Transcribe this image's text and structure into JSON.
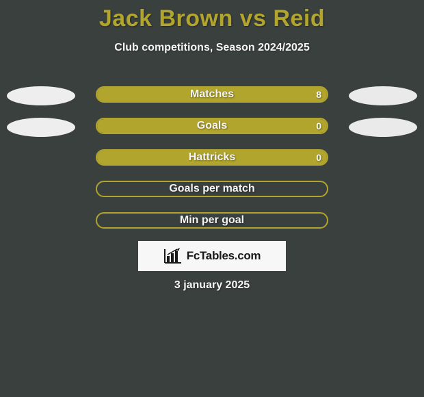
{
  "colors": {
    "background": "#3a403e",
    "title": "#b1a52e",
    "white": "#f5f5f4",
    "bar_border": "#b1a52e",
    "bar_fill": "#b1a52e",
    "ellipse_left": "#eeeeee",
    "ellipse_right": "#eaeaea",
    "logo_bg": "#f7f7f7",
    "logo_text": "#1a1a1a"
  },
  "title": "Jack Brown vs Reid",
  "title_fontsize": 34,
  "subtitle": "Club competitions, Season 2024/2025",
  "subtitle_fontsize": 16,
  "rows": [
    {
      "label": "Matches",
      "right_value": "8",
      "show_left_ellipse": true,
      "show_right_ellipse": true,
      "fill_left_pct": 0,
      "fill_right_pct": 100
    },
    {
      "label": "Goals",
      "right_value": "0",
      "show_left_ellipse": true,
      "show_right_ellipse": true,
      "fill_left_pct": 0,
      "fill_right_pct": 100
    },
    {
      "label": "Hattricks",
      "right_value": "0",
      "show_left_ellipse": false,
      "show_right_ellipse": false,
      "fill_left_pct": 0,
      "fill_right_pct": 100
    },
    {
      "label": "Goals per match",
      "right_value": "",
      "show_left_ellipse": false,
      "show_right_ellipse": false,
      "fill_left_pct": 0,
      "fill_right_pct": 0
    },
    {
      "label": "Min per goal",
      "right_value": "",
      "show_left_ellipse": false,
      "show_right_ellipse": false,
      "fill_left_pct": 0,
      "fill_right_pct": 0
    }
  ],
  "bar": {
    "track_width": 340,
    "track_height": 24,
    "border_radius": 12,
    "label_fontsize": 16
  },
  "logo": {
    "text": "FcTables.com",
    "fontsize": 17
  },
  "date": "3 january 2025",
  "date_fontsize": 16
}
